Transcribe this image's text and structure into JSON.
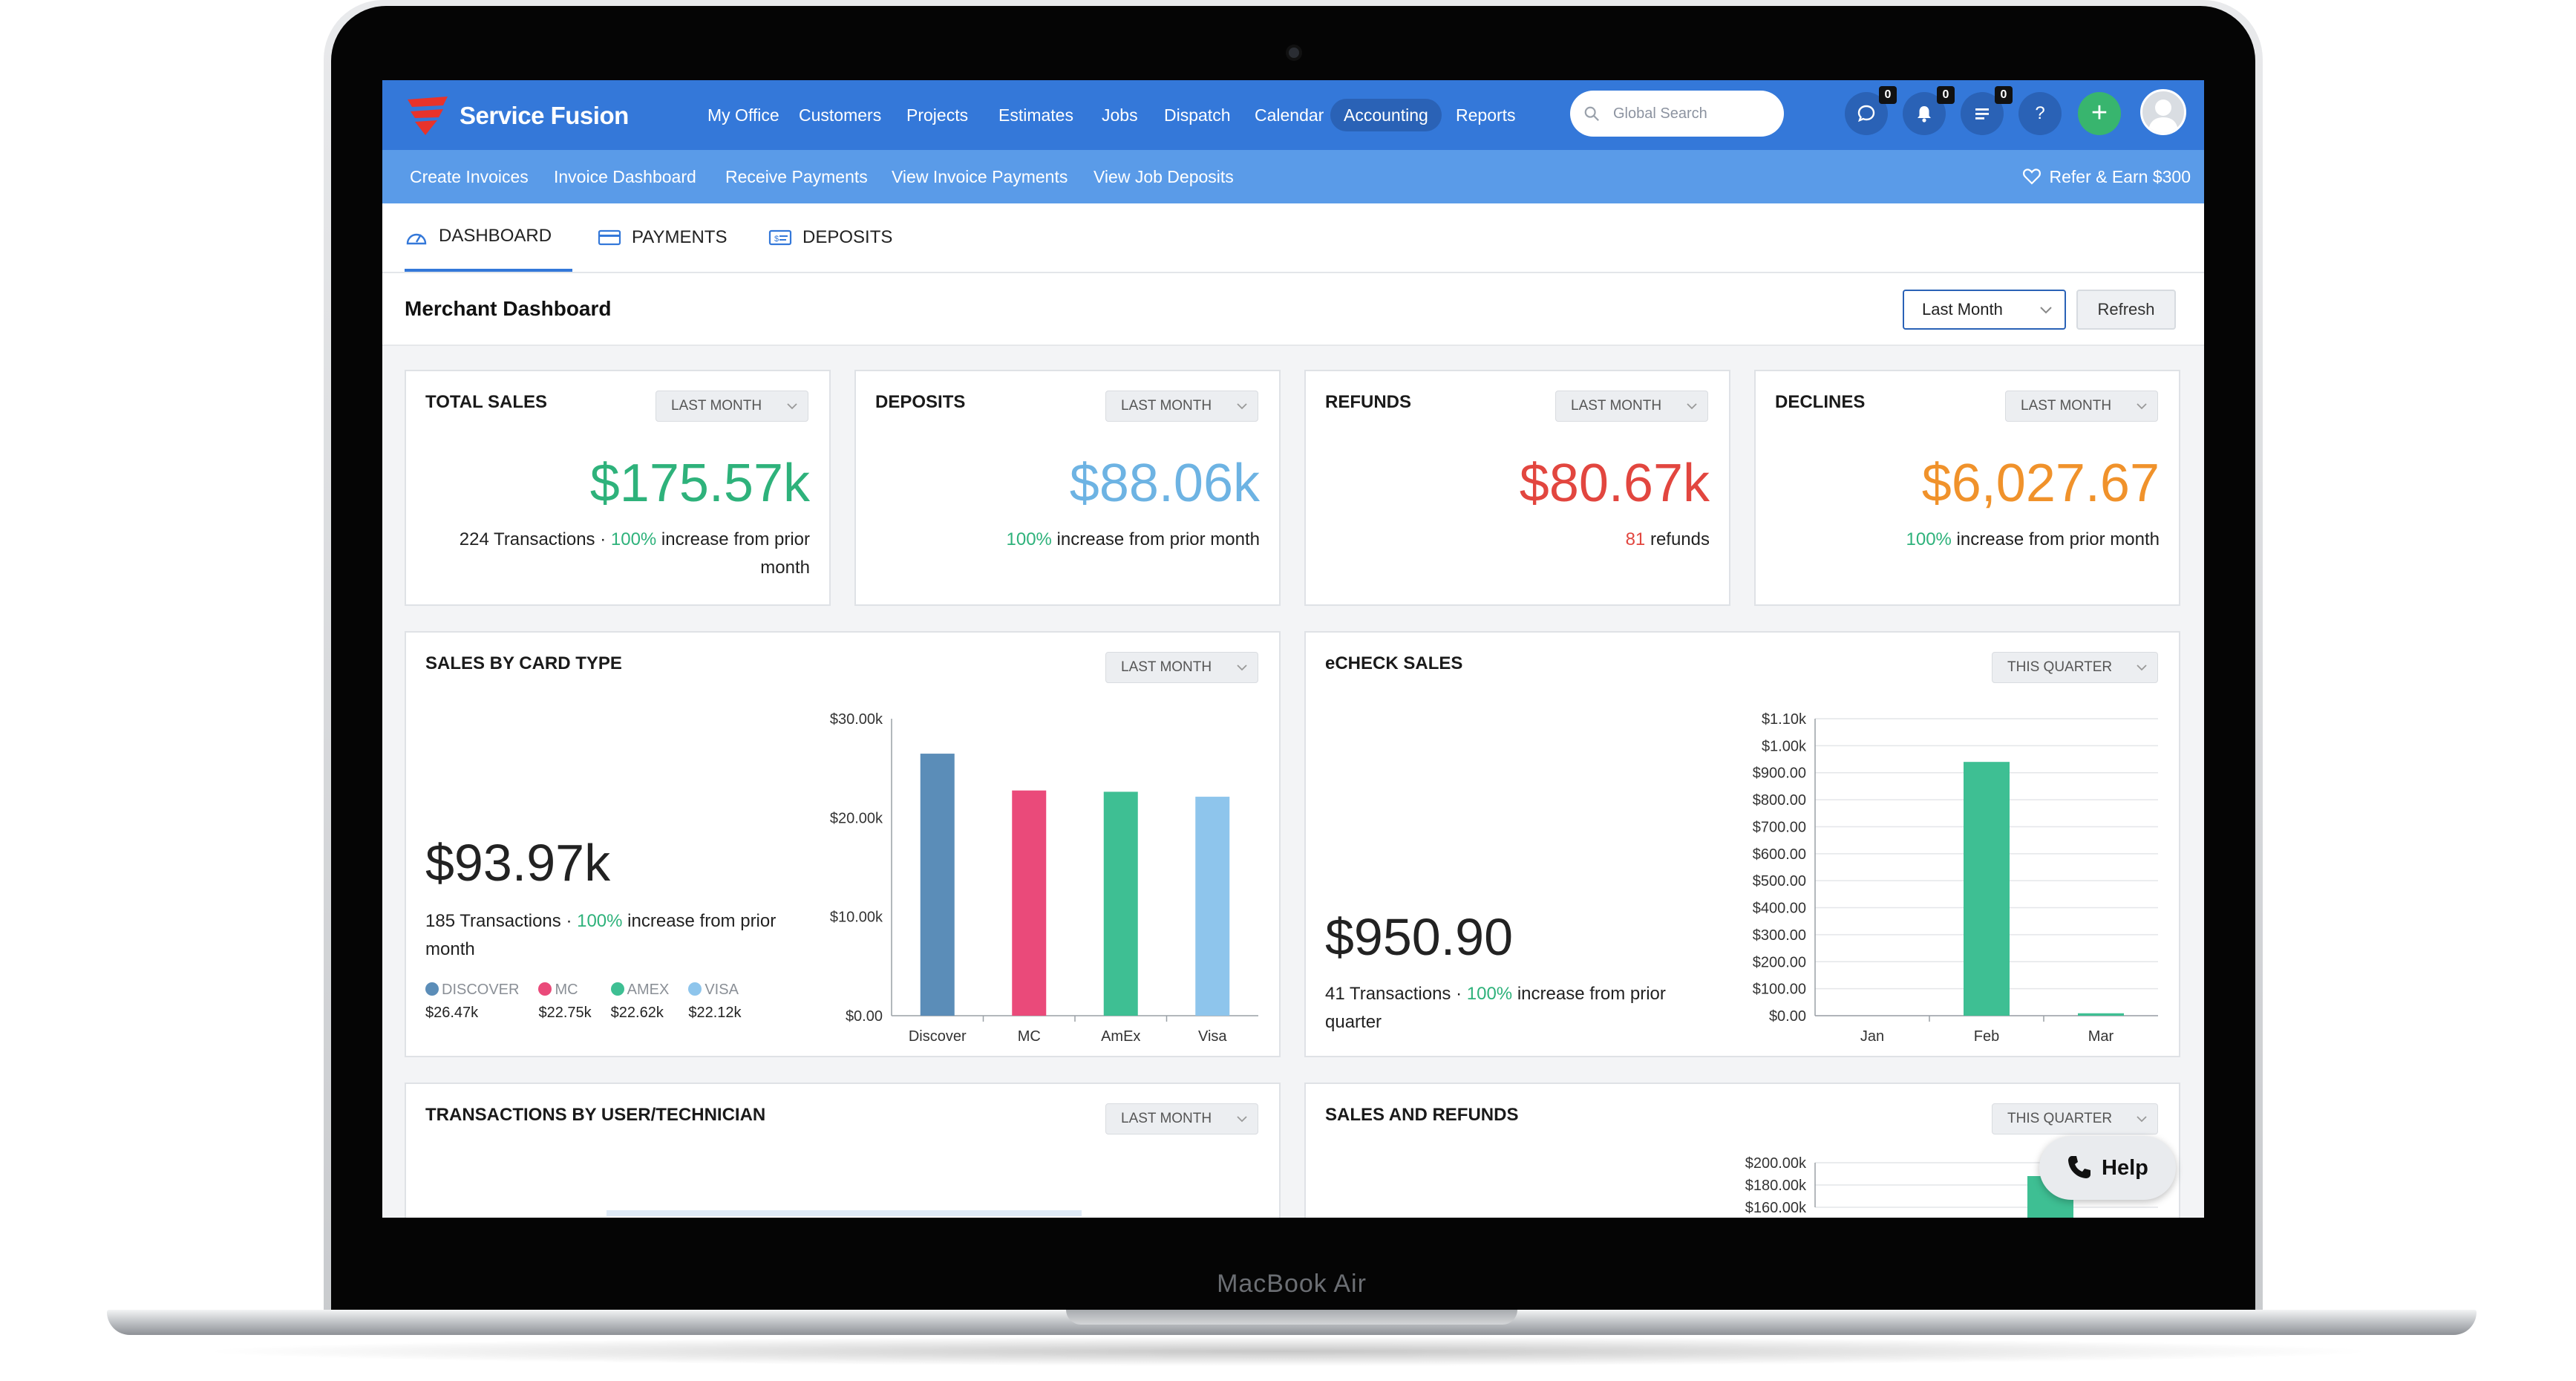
{
  "device": {
    "brand": "MacBook Air"
  },
  "app": {
    "name": "Service Fusion"
  },
  "colors": {
    "brand_blue": "#3478d9",
    "subnav_blue": "#5a9be8",
    "green": "#2eb27b",
    "blue_value": "#6db3e3",
    "red": "#e2463f",
    "orange": "#f0922b"
  },
  "nav": {
    "items": [
      {
        "label": "My Office"
      },
      {
        "label": "Customers"
      },
      {
        "label": "Projects"
      },
      {
        "label": "Estimates"
      },
      {
        "label": "Jobs"
      },
      {
        "label": "Dispatch"
      },
      {
        "label": "Calendar"
      },
      {
        "label": "Accounting"
      },
      {
        "label": "Reports"
      }
    ],
    "active": "Accounting",
    "search_placeholder": "Global Search",
    "badges": {
      "chat": "0",
      "notifications": "0",
      "tasks": "0"
    },
    "help_label": "?",
    "add_label": "+"
  },
  "subnav": {
    "items": [
      {
        "label": "Create Invoices"
      },
      {
        "label": "Invoice Dashboard"
      },
      {
        "label": "Receive Payments"
      },
      {
        "label": "View Invoice Payments"
      },
      {
        "label": "View Job Deposits"
      }
    ],
    "refer_label": "Refer & Earn $300"
  },
  "tabs": {
    "dashboard": "DASHBOARD",
    "payments": "PAYMENTS",
    "deposits": "DEPOSITS"
  },
  "page": {
    "title": "Merchant Dashboard",
    "period": "Last Month",
    "refresh_label": "Refresh"
  },
  "cards": {
    "total_sales": {
      "title": "TOTAL SALES",
      "period": "LAST MONTH",
      "value": "$175.57k",
      "transactions": "224 Transactions · ",
      "pct": "100%",
      "trend": " increase from prior month"
    },
    "deposits": {
      "title": "DEPOSITS",
      "period": "LAST MONTH",
      "value": "$88.06k",
      "pct": "100%",
      "trend": " increase from prior month"
    },
    "refunds": {
      "title": "REFUNDS",
      "period": "LAST MONTH",
      "value": "$80.67k",
      "count": "81",
      "count_label": " refunds"
    },
    "declines": {
      "title": "DECLINES",
      "period": "LAST MONTH",
      "value": "$6,027.67",
      "pct": "100%",
      "trend": " increase from prior month"
    },
    "card_type": {
      "title": "SALES BY CARD TYPE",
      "period": "LAST MONTH",
      "value": "$93.97k",
      "transactions": "185 Transactions · ",
      "pct": "100%",
      "trend": " increase from prior month",
      "legend": [
        {
          "name": "DISCOVER",
          "value": "$26.47k",
          "color": "#5b8db8"
        },
        {
          "name": "MC",
          "value": "$22.75k",
          "color": "#ea4a7a"
        },
        {
          "name": "AMEX",
          "value": "$22.62k",
          "color": "#3ebf93"
        },
        {
          "name": "VISA",
          "value": "$22.12k",
          "color": "#8ec5ec"
        }
      ]
    },
    "echeck": {
      "title": "eCHECK SALES",
      "period": "THIS QUARTER",
      "value": "$950.90",
      "transactions": "41 Transactions · ",
      "pct": "100%",
      "trend": " increase from prior quarter"
    },
    "by_user": {
      "title": "TRANSACTIONS BY USER/TECHNICIAN",
      "period": "LAST MONTH"
    },
    "sales_refunds": {
      "title": "SALES AND REFUNDS",
      "period": "THIS QUARTER"
    }
  },
  "help_button": {
    "label": "Help"
  },
  "chart_data": [
    {
      "type": "bar",
      "categories": [
        "Discover",
        "MC",
        "AmEx",
        "Visa"
      ],
      "values": [
        26470,
        22750,
        22620,
        22120
      ],
      "colors": [
        "#5b8db8",
        "#ea4a7a",
        "#3ebf93",
        "#8ec5ec"
      ],
      "yticks": [
        "$0.00",
        "$10.00k",
        "$20.00k",
        "$30.00k"
      ],
      "ylim": [
        0,
        30000
      ]
    },
    {
      "type": "bar",
      "categories": [
        "Jan",
        "Feb",
        "Mar"
      ],
      "values": [
        0,
        940,
        9
      ],
      "colors": [
        "#3ebf93",
        "#3ebf93",
        "#3ebf93"
      ],
      "yticks": [
        "$0.00",
        "$100.00",
        "$200.00",
        "$300.00",
        "$400.00",
        "$500.00",
        "$600.00",
        "$700.00",
        "$800.00",
        "$900.00",
        "$1.00k",
        "$1.10k"
      ],
      "ylim": [
        0,
        1100
      ]
    },
    {
      "type": "bar",
      "yticks": [
        "$160.00k",
        "$180.00k",
        "$200.00k"
      ],
      "ylim": [
        160000,
        200000
      ]
    }
  ]
}
